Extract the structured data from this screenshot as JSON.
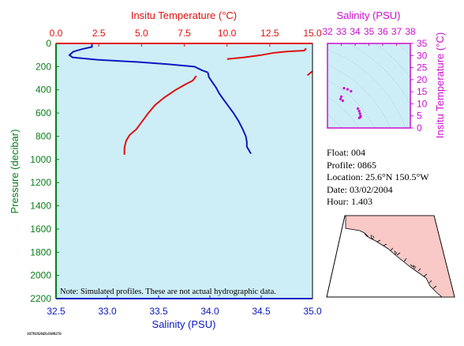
{
  "colors": {
    "plot_bg": "#cdeef7",
    "temperature": "#e01010",
    "salinity": "#0b18c0",
    "axis_green": "#0a7d1a",
    "ts_magenta": "#cc10cc",
    "map_land": "#f8c9c6",
    "map_sea": "#ffffff"
  },
  "chart_data": [
    {
      "type": "line",
      "top_axis": {
        "label": "Insitu Temperature (°C)",
        "range": [
          0.0,
          15.0
        ],
        "ticks": [
          "0.0",
          "2.5",
          "5.0",
          "7.5",
          "10.0",
          "12.5",
          "15.0"
        ]
      },
      "bottom_axis": {
        "label": "Salinity (PSU)",
        "range": [
          32.5,
          35.0
        ],
        "ticks": [
          "32.5",
          "33.0",
          "33.5",
          "34.0",
          "34.5",
          "35.0"
        ]
      },
      "left_axis": {
        "label": "Pressure (decibar)",
        "range": [
          0,
          2200
        ],
        "inverted": true,
        "ticks": [
          "0",
          "200",
          "400",
          "600",
          "800",
          "1000",
          "1200",
          "1400",
          "1600",
          "1800",
          "2000",
          "2200"
        ]
      },
      "grid": false,
      "note": "Note: Simulated profiles.  These are not actual hydrographic data.",
      "series": [
        {
          "variable": "temperature",
          "segments": [
            [
              [
                15.0,
                240
              ],
              [
                14.7,
                275
              ]
            ],
            [
              [
                10.0,
                135
              ],
              [
                11.0,
                120
              ],
              [
                12.0,
                100
              ],
              [
                12.8,
                80
              ],
              [
                13.5,
                70
              ],
              [
                14.1,
                65
              ],
              [
                14.5,
                62
              ],
              [
                14.6,
                52
              ],
              [
                14.6,
                40
              ]
            ],
            [
              [
                8.2,
                280
              ],
              [
                8.0,
                320
              ],
              [
                7.6,
                350
              ],
              [
                7.0,
                400
              ],
              [
                6.3,
                470
              ],
              [
                5.8,
                530
              ],
              [
                5.4,
                600
              ],
              [
                5.0,
                680
              ],
              [
                4.7,
                740
              ],
              [
                4.3,
                790
              ],
              [
                4.1,
                840
              ],
              [
                4.0,
                900
              ],
              [
                4.0,
                960
              ]
            ]
          ]
        },
        {
          "variable": "salinity",
          "segments": [
            [
              [
                32.85,
                0
              ],
              [
                32.85,
                30
              ],
              [
                32.75,
                50
              ],
              [
                32.67,
                70
              ],
              [
                32.63,
                100
              ],
              [
                32.66,
                120
              ],
              [
                32.9,
                140
              ],
              [
                33.3,
                160
              ],
              [
                33.6,
                180
              ],
              [
                33.85,
                200
              ],
              [
                33.92,
                230
              ],
              [
                33.98,
                250
              ]
            ],
            [
              [
                33.98,
                250
              ],
              [
                33.99,
                290
              ],
              [
                34.02,
                330
              ],
              [
                34.06,
                380
              ],
              [
                34.09,
                430
              ],
              [
                34.13,
                480
              ],
              [
                34.18,
                540
              ],
              [
                34.23,
                600
              ],
              [
                34.28,
                670
              ],
              [
                34.32,
                740
              ],
              [
                34.35,
                800
              ],
              [
                34.36,
                850
              ],
              [
                34.36,
                890
              ],
              [
                34.4,
                950
              ]
            ]
          ]
        }
      ]
    },
    {
      "type": "scatter",
      "top_axis": {
        "label": "Salinity (PSU)",
        "range": [
          32,
          38
        ],
        "ticks": [
          "32",
          "33",
          "34",
          "35",
          "36",
          "37",
          "38"
        ]
      },
      "right_axis": {
        "label": "Insitu Temperature (°C)",
        "range": [
          0,
          35
        ],
        "ticks": [
          "0",
          "5",
          "10",
          "15",
          "20",
          "25",
          "30",
          "35"
        ]
      },
      "points": [
        [
          33.2,
          16.5
        ],
        [
          33.45,
          16.0
        ],
        [
          33.7,
          15.2
        ],
        [
          33.0,
          13.0
        ],
        [
          32.95,
          12.0
        ],
        [
          33.1,
          11.3
        ],
        [
          34.2,
          8.0
        ],
        [
          34.3,
          7.0
        ],
        [
          34.35,
          6.0
        ],
        [
          34.4,
          5.0
        ],
        [
          34.38,
          4.5
        ],
        [
          34.3,
          4.2
        ]
      ]
    }
  ],
  "info": {
    "float": "Float:  004",
    "profile": "Profile:  0865",
    "location": "Location:  25.6°N  150.5°W",
    "date": "Date:  03/02/2004",
    "hour": "Hour:  1.403"
  },
  "footer_id": "1078192049.0388276"
}
